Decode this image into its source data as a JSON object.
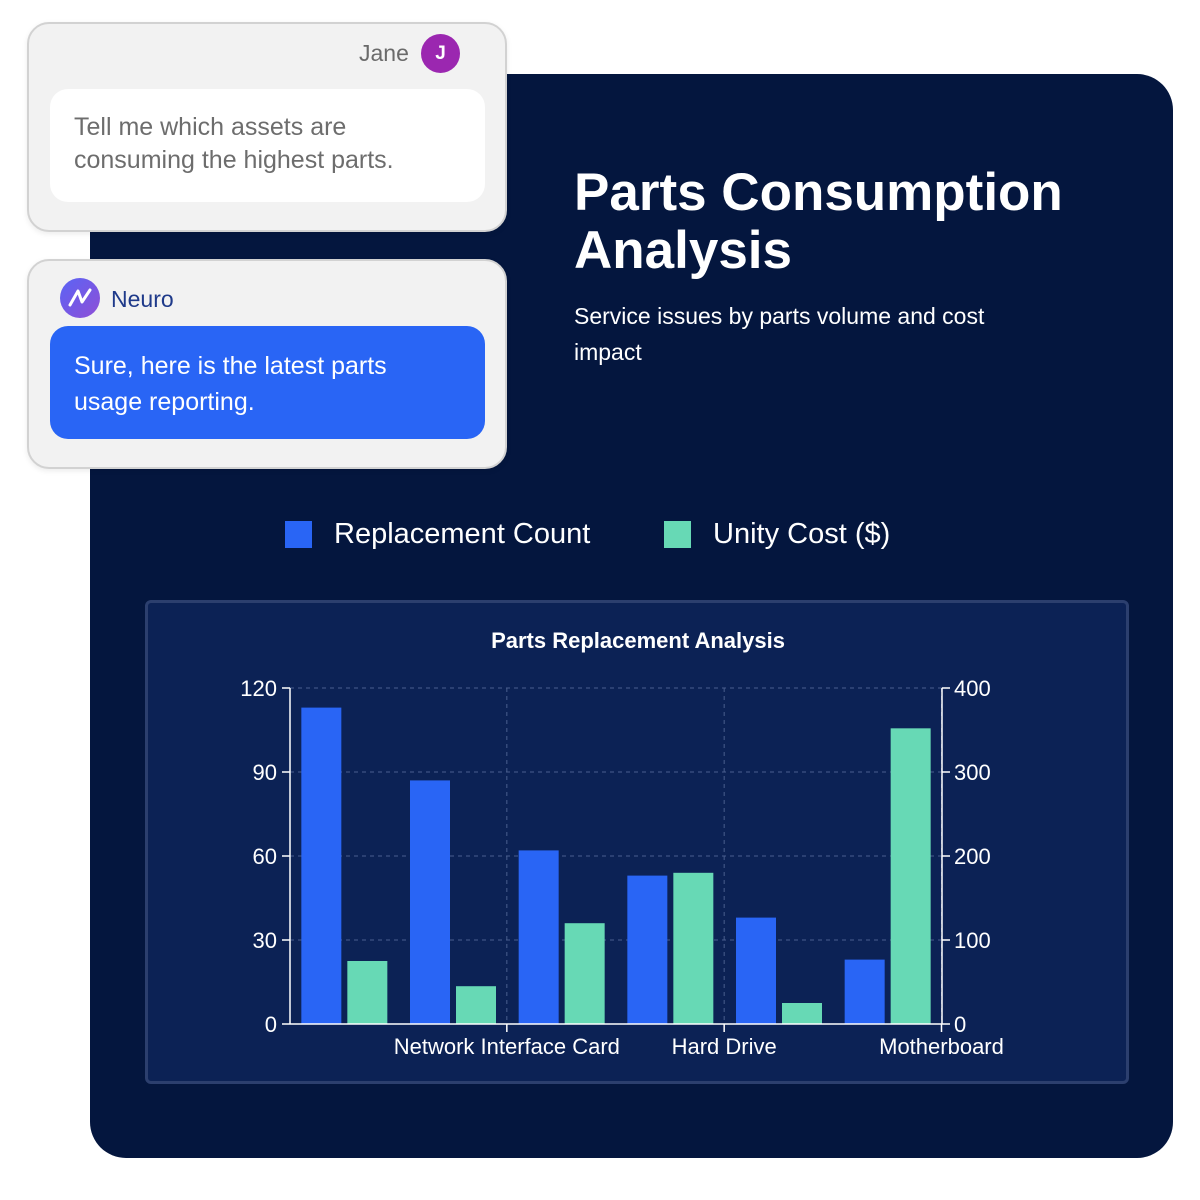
{
  "chat": {
    "user": {
      "name": "Jane",
      "initial": "J",
      "message": "Tell me which assets are consuming the highest parts."
    },
    "assistant": {
      "name": "Neuro",
      "icon": "neuro-logo-icon",
      "message": "Sure, here is the latest parts usage reporting."
    }
  },
  "header": {
    "title": "Parts Consumption Analysis",
    "subtitle": "Service issues by parts volume and cost impact"
  },
  "legend": {
    "items": [
      {
        "label": "Replacement Count",
        "color": "#2965f5"
      },
      {
        "label": "Unity Cost ($)",
        "color": "#67d9b5"
      }
    ]
  },
  "chart_data": {
    "type": "bar",
    "title": "Parts Replacement Analysis",
    "categories": [
      "",
      "Network Interface Card",
      "",
      "Hard Drive",
      "",
      "Motherboard"
    ],
    "series": [
      {
        "name": "Replacement Count",
        "axis": "left",
        "color": "#2965f5",
        "values": [
          113,
          87,
          62,
          53,
          38,
          23
        ]
      },
      {
        "name": "Unity Cost ($)",
        "axis": "right",
        "color": "#67d9b5",
        "values": [
          75,
          45,
          120,
          180,
          25,
          352
        ]
      }
    ],
    "y_left": {
      "min": 0,
      "max": 120,
      "ticks": [
        0,
        30,
        60,
        90,
        120
      ]
    },
    "y_right": {
      "min": 0,
      "max": 400,
      "ticks": [
        0,
        100,
        200,
        300,
        400
      ]
    },
    "grid": true,
    "legend_position": "top"
  }
}
